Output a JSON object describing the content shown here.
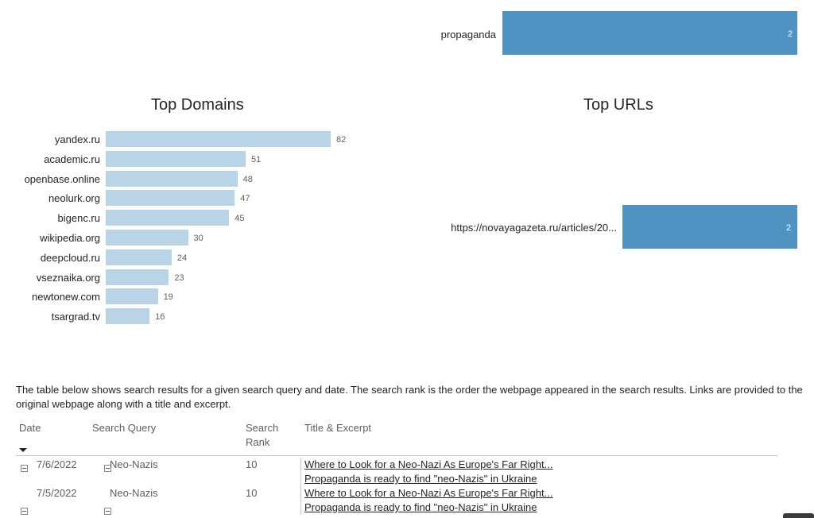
{
  "keywords_chart": {
    "label": "propaganda",
    "value": "2"
  },
  "chart_data": [
    {
      "type": "bar",
      "orientation": "horizontal",
      "title": "Top Domains",
      "categories": [
        "yandex.ru",
        "academic.ru",
        "openbase.online",
        "neolurk.org",
        "bigenc.ru",
        "wikipedia.org",
        "deepcloud.ru",
        "vseznaika.org",
        "newtonew.com",
        "tsargrad.tv"
      ],
      "values": [
        82,
        51,
        48,
        47,
        45,
        30,
        24,
        23,
        19,
        16
      ],
      "color": "#b9d4e7"
    },
    {
      "type": "bar",
      "orientation": "horizontal",
      "title": "Top URLs",
      "categories": [
        "https://novayagazeta.ru/articles/20..."
      ],
      "values": [
        2
      ],
      "color": "#4f93c2"
    }
  ],
  "description": "The table below shows search results for a given search query and date. The search rank is the order the webpage appeared in the search results. Links are provided to the original webpage along with a title and excerpt.",
  "table": {
    "headers": {
      "date": "Date",
      "query": "Search Query",
      "rank": "Search Rank",
      "title": "Title & Excerpt"
    },
    "rows": [
      {
        "date": "7/6/2022",
        "query": "Neo-Nazis",
        "rank": "10",
        "links": [
          "Where to Look for a Neo-Nazi As Europe's Far Right...",
          "Propaganda is ready to find \"neo-Nazis\" in Ukraine"
        ]
      },
      {
        "date": "7/5/2022",
        "query": "Neo-Nazis",
        "rank": "10",
        "links": [
          "Where to Look for a Neo-Nazi As Europe's Far Right...",
          "Propaganda is ready to find \"neo-Nazis\" in Ukraine"
        ]
      }
    ]
  }
}
